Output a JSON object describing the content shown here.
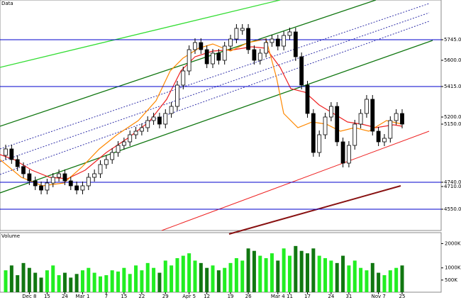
{
  "chart_data": {
    "type": "candlestick",
    "title": "Data",
    "volume_title": "Volume",
    "categories": [
      null,
      null,
      null,
      null,
      "Dec 8",
      null,
      null,
      "15",
      null,
      null,
      "24",
      null,
      null,
      "Mar 1",
      null,
      null,
      null,
      "7",
      null,
      null,
      "15",
      null,
      null,
      "22",
      null,
      null,
      null,
      "29",
      null,
      null,
      null,
      "Apr 5",
      null,
      null,
      "12",
      null,
      null,
      null,
      "19",
      null,
      null,
      "26",
      null,
      null,
      null,
      null,
      "Mar 4",
      null,
      "11",
      null,
      null,
      "17",
      null,
      null,
      null,
      "24",
      null,
      null,
      "31",
      null,
      null,
      null,
      null,
      "Nov 7",
      null,
      null,
      null,
      "25"
    ],
    "open": [
      4930,
      4975,
      4900,
      4850,
      4800,
      4750,
      4715,
      4685,
      4735,
      4775,
      4800,
      4750,
      4715,
      4685,
      4715,
      4775,
      4800,
      4865,
      4900,
      4950,
      5000,
      5025,
      5075,
      5100,
      5125,
      5175,
      5200,
      5150,
      5225,
      5275,
      5425,
      5525,
      5675,
      5725,
      5675,
      5575,
      5650,
      5600,
      5700,
      5750,
      5810,
      5825,
      5675,
      5600,
      5650,
      5725,
      5750,
      5700,
      5775,
      5800,
      5625,
      5425,
      5225,
      4950,
      5075,
      5200,
      5275,
      5025,
      4875,
      5000,
      5150,
      5225,
      5325,
      5100,
      5025,
      5050,
      5175,
      5225
    ],
    "high": [
      5005,
      5005,
      4930,
      4880,
      4830,
      4780,
      4745,
      4765,
      4805,
      4830,
      4830,
      4780,
      4745,
      4745,
      4805,
      4830,
      4895,
      4930,
      4980,
      5030,
      5055,
      5105,
      5130,
      5155,
      5205,
      5230,
      5230,
      5255,
      5305,
      5455,
      5555,
      5705,
      5755,
      5755,
      5705,
      5680,
      5680,
      5730,
      5780,
      5855,
      5855,
      5855,
      5705,
      5680,
      5755,
      5780,
      5780,
      5805,
      5830,
      5830,
      5655,
      5455,
      5255,
      5105,
      5230,
      5305,
      5305,
      5055,
      5030,
      5180,
      5255,
      5355,
      5355,
      5130,
      5080,
      5205,
      5255,
      5255
    ],
    "low": [
      4900,
      4870,
      4820,
      4770,
      4720,
      4685,
      4655,
      4655,
      4705,
      4745,
      4720,
      4685,
      4655,
      4655,
      4685,
      4745,
      4770,
      4835,
      4870,
      4920,
      4970,
      4995,
      5045,
      5070,
      5095,
      5145,
      5120,
      5120,
      5195,
      5245,
      5395,
      5495,
      5645,
      5645,
      5545,
      5545,
      5570,
      5570,
      5670,
      5720,
      5780,
      5645,
      5570,
      5570,
      5620,
      5695,
      5670,
      5670,
      5745,
      5595,
      5395,
      5195,
      4920,
      4920,
      5045,
      5170,
      4995,
      4845,
      4845,
      4970,
      5120,
      5195,
      5070,
      4995,
      4995,
      5020,
      5145,
      5120
    ],
    "close": [
      4975,
      4900,
      4850,
      4800,
      4750,
      4715,
      4685,
      4735,
      4775,
      4800,
      4750,
      4715,
      4685,
      4715,
      4775,
      4800,
      4865,
      4900,
      4950,
      5000,
      5025,
      5075,
      5100,
      5125,
      5175,
      5200,
      5150,
      5225,
      5275,
      5425,
      5525,
      5675,
      5725,
      5675,
      5575,
      5650,
      5600,
      5700,
      5750,
      5825,
      5825,
      5675,
      5600,
      5650,
      5725,
      5750,
      5700,
      5775,
      5800,
      5625,
      5425,
      5225,
      4950,
      5075,
      5200,
      5275,
      5025,
      4875,
      5000,
      5150,
      5225,
      5325,
      5100,
      5025,
      5050,
      5175,
      5225,
      5150
    ],
    "volume": [
      900,
      1100,
      700,
      1200,
      1000,
      800,
      600,
      900,
      1100,
      700,
      800,
      600,
      750,
      900,
      1000,
      800,
      650,
      700,
      900,
      850,
      1000,
      750,
      1100,
      900,
      1200,
      1000,
      800,
      1300,
      1100,
      1400,
      1500,
      1600,
      1300,
      1200,
      1000,
      1100,
      900,
      1000,
      1200,
      1400,
      1300,
      1800,
      1700,
      1500,
      1400,
      1600,
      1300,
      1800,
      1500,
      1900,
      1700,
      1600,
      1800,
      1500,
      1400,
      1300,
      1200,
      1500,
      1100,
      1300,
      1000,
      900,
      1200,
      800,
      700,
      900,
      1000,
      1100
    ],
    "ylim": [
      4400,
      6000
    ],
    "yticks": [
      {
        "value": 5745,
        "label": "5745.00"
      },
      {
        "value": 5600,
        "label": "5600.00"
      },
      {
        "value": 5415,
        "label": "5415.00"
      },
      {
        "value": 5200,
        "label": "5200.00"
      },
      {
        "value": 5150,
        "label": "5150.00"
      },
      {
        "value": 4740,
        "label": "4740.00"
      },
      {
        "value": 4710,
        "label": "4710.00"
      },
      {
        "value": 4550,
        "label": "4550.00"
      }
    ],
    "hlines": [
      5745,
      5415,
      4740,
      4550
    ],
    "hline_color": "#0000cc",
    "up_color": "#ffffff",
    "down_color": "#000000",
    "volume_up_color": "#22ee22",
    "volume_down_color": "#117711",
    "volume_ylim": [
      0,
      2100
    ],
    "volume_yticks": [
      {
        "value": 2000,
        "label": "2000K"
      },
      {
        "value": 1000,
        "label": "1000K"
      },
      {
        "value": 500,
        "label": "500K"
      }
    ]
  }
}
